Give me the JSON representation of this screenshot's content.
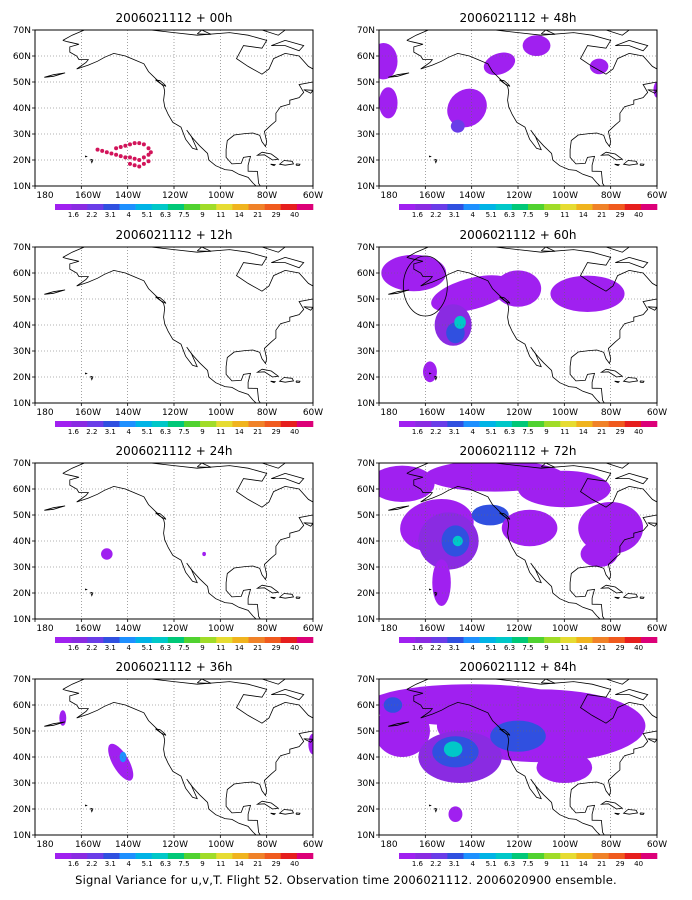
{
  "caption": "Signal Variance for u,v,T. Flight 52. Observation time 2006021112. 2006020900 ensemble.",
  "lon_labels": [
    "180",
    "160W",
    "140W",
    "120W",
    "100W",
    "80W",
    "60W"
  ],
  "lat_labels": [
    "10N",
    "20N",
    "30N",
    "40N",
    "50N",
    "60N",
    "70N"
  ],
  "colorbar": {
    "colors": [
      "#a020f0",
      "#8a2be2",
      "#6a3de8",
      "#3050e0",
      "#1e90ff",
      "#00b4e6",
      "#00c8c8",
      "#00c878",
      "#50d230",
      "#a0dc28",
      "#e6dc32",
      "#f0b41e",
      "#f08228",
      "#f05a1e",
      "#e61e1e",
      "#dc0078"
    ],
    "labels": [
      "1.6",
      "2.2",
      "3.1",
      "4",
      "5.1",
      "6.3",
      "7.5",
      "9",
      "11",
      "14",
      "21",
      "29",
      "40"
    ]
  },
  "panels": [
    {
      "title": "2006021112 + 00h"
    },
    {
      "title": "2006021112 + 48h"
    },
    {
      "title": "2006021112 + 12h"
    },
    {
      "title": "2006021112 + 60h"
    },
    {
      "title": "2006021112 + 24h"
    },
    {
      "title": "2006021112 + 72h"
    },
    {
      "title": "2006021112 + 36h"
    },
    {
      "title": "2006021112 + 84h"
    }
  ],
  "flight_track_color": "#d2145a",
  "flight_track": [
    [
      -153,
      24
    ],
    [
      -151,
      23.5
    ],
    [
      -149,
      23
    ],
    [
      -147,
      22.5
    ],
    [
      -145,
      22
    ],
    [
      -143,
      21.5
    ],
    [
      -141,
      21
    ],
    [
      -139,
      21
    ],
    [
      -137,
      20.5
    ],
    [
      -135,
      20
    ],
    [
      -133,
      21
    ],
    [
      -131,
      22
    ],
    [
      -130,
      23
    ],
    [
      -131,
      24.5
    ],
    [
      -133,
      26
    ],
    [
      -135,
      26.5
    ],
    [
      -137,
      26.5
    ],
    [
      -139,
      26
    ],
    [
      -141,
      25.5
    ],
    [
      -143,
      25
    ],
    [
      -145,
      24.5
    ],
    [
      -139,
      18.5
    ],
    [
      -137,
      18
    ],
    [
      -135,
      17.5
    ],
    [
      -133,
      18.5
    ],
    [
      -131,
      19.5
    ]
  ]
}
